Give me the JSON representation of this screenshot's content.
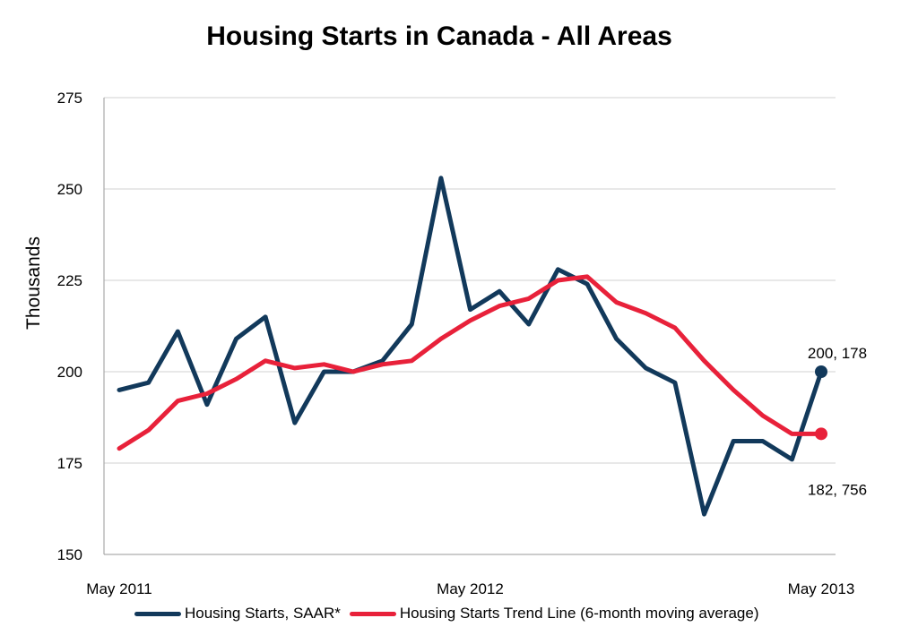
{
  "colors": {
    "saar": "#12395b",
    "trend": "#e8213a",
    "grid": "#d0d0d0",
    "axis": "#9a9a9a"
  },
  "chart_data": {
    "type": "line",
    "title": "Housing Starts in Canada - All Areas",
    "ylabel": "Thousands",
    "xlabel": "",
    "ylim": [
      150,
      275
    ],
    "yticks": [
      150,
      175,
      200,
      225,
      250,
      275
    ],
    "xtick_labels": [
      {
        "label": "May 2011",
        "index": 0
      },
      {
        "label": "May 2012",
        "index": 12
      },
      {
        "label": "May 2013",
        "index": 24
      }
    ],
    "grid": true,
    "legend": "bottom",
    "series": [
      {
        "name": "Housing Starts, SAAR*",
        "color_key": "saar",
        "values": [
          195,
          197,
          211,
          191,
          209,
          215,
          186,
          200,
          200,
          203,
          213,
          253,
          217,
          222,
          213,
          228,
          224,
          209,
          201,
          197,
          161,
          181,
          181,
          176,
          200
        ]
      },
      {
        "name": "Housing Starts Trend Line (6-month moving average)",
        "color_key": "trend",
        "values": [
          179,
          184,
          192,
          194,
          198,
          203,
          201,
          202,
          200,
          202,
          203,
          209,
          214,
          218,
          220,
          225,
          226,
          219,
          216,
          212,
          203,
          195,
          188,
          183,
          183
        ]
      }
    ],
    "annotations": [
      {
        "text": "200, 178",
        "series": 0,
        "index": 24
      },
      {
        "text": "182, 756",
        "series": 1,
        "index": 24
      }
    ]
  }
}
